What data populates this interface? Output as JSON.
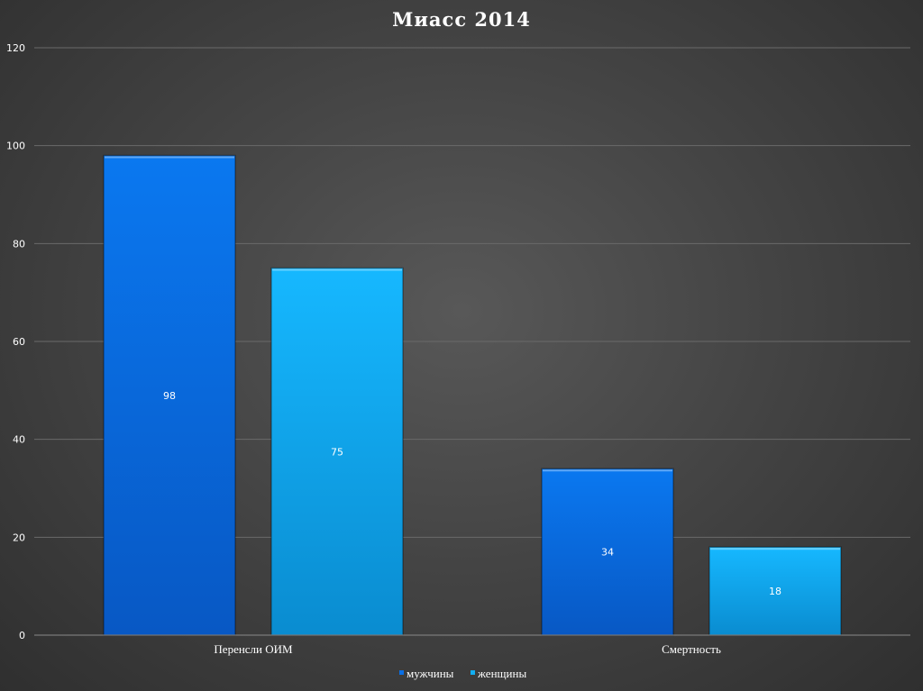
{
  "chart_data": {
    "type": "bar",
    "title": "Миасс 2014",
    "categories": [
      "Перенсли ОИМ",
      "Смертность"
    ],
    "series": [
      {
        "name": "мужчины",
        "values": [
          98,
          34
        ],
        "color": "#0a6fe6"
      },
      {
        "name": "женщины",
        "values": [
          75,
          18
        ],
        "color": "#12aef2"
      }
    ],
    "ylim": [
      0,
      120
    ],
    "yticks": [
      0,
      20,
      40,
      60,
      80,
      100,
      120
    ],
    "grid": true,
    "legend": "bottom",
    "data_labels": true
  }
}
